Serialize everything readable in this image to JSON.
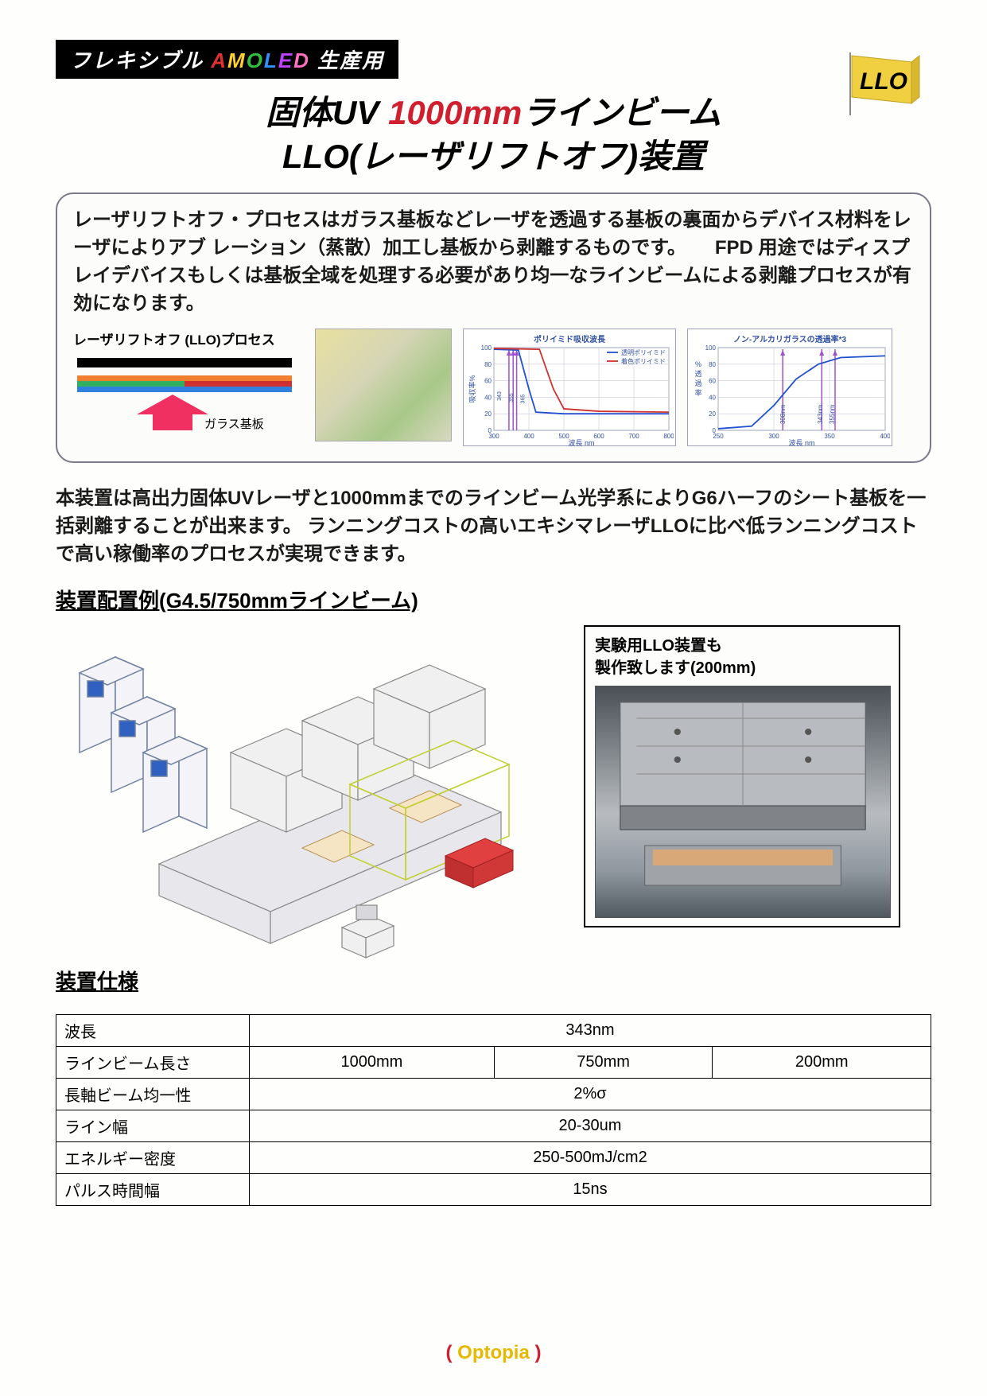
{
  "header": {
    "banner_prefix": "フレキシブル ",
    "banner_amoled": [
      "A",
      "M",
      "O",
      "L",
      "E",
      "D"
    ],
    "banner_suffix": " 生産用",
    "badge_text": "LLO"
  },
  "title": {
    "line1_a": "固体UV ",
    "line1_red": "1000mm",
    "line1_b": "ラインビーム",
    "line2": "LLO(レーザリフトオフ)装置"
  },
  "descbox": {
    "text": "レーザリフトオフ・プロセスはガラス基板などレーザを透過する基板の裏面からデバイス材料をレーザによりアブ レーション（蒸散）加工し基板から剥離するものです。　　FPD 用途ではディスプレイデバイスもしくは基板全域を処理する必要があり均一なラインビームによる剥離プロセスが有効になります。",
    "process_title": "レーザリフトオフ (LLO)プロセス",
    "glass_label": "ガラス基板",
    "process_colors": {
      "bar_black": "#000000",
      "bar_orange": "#f08030",
      "bar_green": "#30b060",
      "bar_blue": "#3080e0",
      "arrow": "#f03060"
    }
  },
  "chart1": {
    "title": "ポリイミド吸収波長",
    "xlabel": "波長 nm",
    "ylabel": "吸収率%",
    "xlim": [
      300,
      800
    ],
    "ylim": [
      0,
      100
    ],
    "ytick_step": 20,
    "xtick_step": 100,
    "series": [
      {
        "name": "透明ポリイミド",
        "color": "#2050d0",
        "points": [
          [
            300,
            98
          ],
          [
            370,
            97
          ],
          [
            400,
            50
          ],
          [
            420,
            22
          ],
          [
            500,
            20
          ],
          [
            800,
            20
          ]
        ]
      },
      {
        "name": "着色ポリイミド",
        "color": "#d03030",
        "points": [
          [
            300,
            99
          ],
          [
            430,
            98
          ],
          [
            470,
            50
          ],
          [
            500,
            26
          ],
          [
            600,
            23
          ],
          [
            800,
            22
          ]
        ]
      }
    ],
    "vlines": [
      {
        "x": 343,
        "color": "#a050d0"
      },
      {
        "x": 355,
        "color": "#a050d0"
      },
      {
        "x": 365,
        "color": "#a050d0"
      }
    ],
    "vlabels": [
      "343",
      "355",
      "365"
    ],
    "grid_color": "#c8c8d8",
    "background": "#ffffff"
  },
  "chart2": {
    "title": "ノン-アルカリガラスの透過率*3",
    "xlabel": "波長 nm",
    "ylabel": "%\n透\n過\n率",
    "xlim": [
      250,
      400
    ],
    "ylim": [
      0,
      100
    ],
    "ytick_step": 20,
    "xtick_step": 50,
    "series": [
      {
        "name": "",
        "color": "#2050d0",
        "points": [
          [
            250,
            2
          ],
          [
            280,
            5
          ],
          [
            300,
            30
          ],
          [
            320,
            62
          ],
          [
            340,
            80
          ],
          [
            360,
            88
          ],
          [
            400,
            90
          ]
        ]
      }
    ],
    "vlines": [
      {
        "x": 308,
        "label": "308nm",
        "color": "#a050d0"
      },
      {
        "x": 343,
        "label": "343nm",
        "color": "#a050d0"
      },
      {
        "x": 355,
        "label": "355nm",
        "color": "#a050d0"
      }
    ],
    "grid_color": "#c8c8d8",
    "background": "#ffffff"
  },
  "body_text": "本装置は高出力固体UVレーザと1000mmまでのラインビーム光学系によりG6ハーフのシート基板を一括剥離することが出来ます。 ランニングコストの高いエキシマレーザLLOに比べ低ランニングコストで高い稼働率のプロセスが実現できます。",
  "layout_title": "装置配置例(G4.5/750mmラインビーム)",
  "sidebox": {
    "line1": "実験用LLO装置も",
    "line2": "製作致します(200mm)"
  },
  "spec_title": "装置仕様",
  "spec_table": {
    "rows": [
      {
        "label": "波長",
        "cells": [
          "343nm"
        ],
        "colspan": 3
      },
      {
        "label": "ラインビーム長さ",
        "cells": [
          "1000mm",
          "750mm",
          "200mm"
        ],
        "colspan": 1
      },
      {
        "label": "長軸ビーム均一性",
        "cells": [
          "2%σ"
        ],
        "colspan": 3
      },
      {
        "label": "ライン幅",
        "cells": [
          "20-30um"
        ],
        "colspan": 3
      },
      {
        "label": "エネルギー密度",
        "cells": [
          "250-500mJ/cm2"
        ],
        "colspan": 3
      },
      {
        "label": "パルス時間幅",
        "cells": [
          "15ns"
        ],
        "colspan": 3
      }
    ]
  },
  "footer": {
    "open": "(",
    "text": " Optopia ",
    "close": ")"
  }
}
